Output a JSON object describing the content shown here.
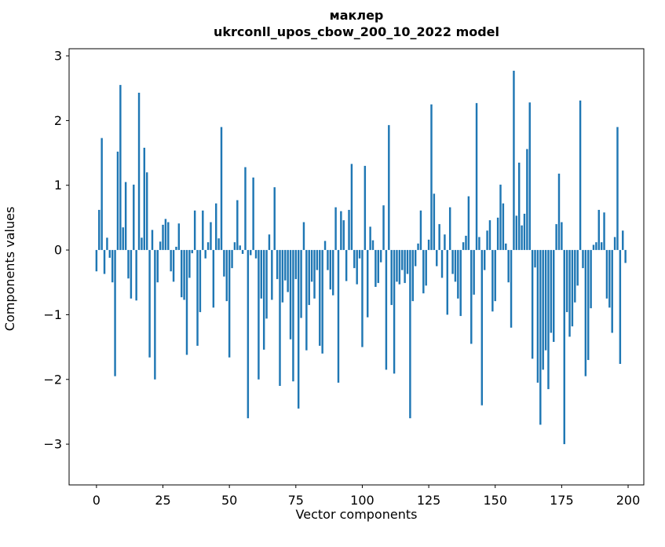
{
  "figure": {
    "background": "#ffffff",
    "spine_color": "#000000"
  },
  "chart_data": {
    "type": "bar",
    "title": "маклер",
    "subtitle": "ukrconll_upos_cbow_200_10_2022 model",
    "xlabel": "Vector components",
    "ylabel": "Components values",
    "bar_color": "#1f77b4",
    "grid": false,
    "legend": null,
    "x_start": 0,
    "xticks": [
      0,
      25,
      50,
      75,
      100,
      125,
      150,
      175,
      200
    ],
    "yticks": [
      -3,
      -2,
      -1,
      0,
      1,
      2,
      3
    ],
    "xlim": [
      -10.3,
      205.9
    ],
    "ylim": [
      -3.63,
      3.11
    ],
    "values": [
      -0.33,
      0.62,
      1.73,
      -0.37,
      0.19,
      -0.12,
      -0.5,
      -1.95,
      1.52,
      2.55,
      0.35,
      1.05,
      -0.44,
      -0.75,
      1.01,
      -0.78,
      2.43,
      0.19,
      1.58,
      1.2,
      -1.66,
      0.31,
      -2.0,
      -0.5,
      0.13,
      0.39,
      0.48,
      0.43,
      -0.33,
      -0.49,
      0.05,
      0.41,
      -0.73,
      -0.77,
      -1.62,
      -0.43,
      -0.05,
      0.61,
      -1.48,
      -0.96,
      0.61,
      -0.13,
      0.12,
      0.43,
      -0.89,
      0.72,
      0.18,
      1.9,
      -0.41,
      -0.79,
      -1.66,
      -0.28,
      0.12,
      0.77,
      0.07,
      -0.06,
      1.28,
      -2.6,
      -0.08,
      1.12,
      -0.13,
      -2.0,
      -0.75,
      -1.54,
      -1.06,
      0.24,
      -0.77,
      0.97,
      -0.45,
      -2.1,
      -0.81,
      -0.47,
      -0.65,
      -1.38,
      -2.03,
      -0.45,
      -2.45,
      -1.05,
      0.43,
      -1.55,
      -0.85,
      -0.49,
      -0.75,
      -0.31,
      -1.48,
      -1.6,
      0.14,
      -0.31,
      -0.61,
      -0.7,
      0.66,
      -2.05,
      0.6,
      0.46,
      -0.48,
      0.62,
      1.33,
      -0.28,
      -0.53,
      -0.13,
      -1.5,
      1.3,
      -1.04,
      0.36,
      0.15,
      -0.57,
      -0.51,
      -0.19,
      0.69,
      -1.85,
      1.93,
      -0.85,
      -1.91,
      -0.49,
      -0.53,
      -0.31,
      -0.51,
      -0.37,
      -2.6,
      -0.79,
      -0.25,
      0.1,
      0.61,
      -0.67,
      -0.55,
      0.16,
      2.25,
      0.87,
      -0.25,
      0.4,
      -0.43,
      0.24,
      -1.0,
      0.66,
      -0.37,
      -0.49,
      -0.75,
      -1.02,
      0.12,
      0.22,
      0.83,
      -1.45,
      -0.69,
      2.27,
      0.2,
      -2.4,
      -0.31,
      0.3,
      0.46,
      -0.95,
      -0.79,
      0.5,
      1.01,
      0.72,
      0.1,
      -0.5,
      -1.2,
      2.77,
      0.53,
      1.35,
      0.38,
      0.56,
      1.56,
      2.28,
      -1.68,
      -0.27,
      -2.05,
      -2.7,
      -1.85,
      -1.55,
      -2.15,
      -1.28,
      -1.42,
      0.4,
      1.18,
      0.43,
      -3.0,
      -0.96,
      -1.34,
      -1.18,
      -0.81,
      -0.55,
      2.31,
      -0.28,
      -1.95,
      -1.7,
      -0.9,
      0.08,
      0.12,
      0.62,
      0.12,
      0.58,
      -0.75,
      -0.89,
      -1.28,
      0.2,
      1.9,
      -1.76,
      0.3,
      -0.2
    ]
  }
}
